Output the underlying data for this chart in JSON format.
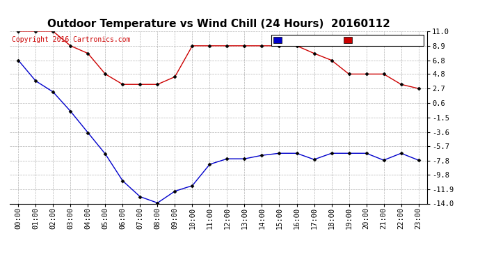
{
  "title": "Outdoor Temperature vs Wind Chill (24 Hours)  20160112",
  "copyright": "Copyright 2016 Cartronics.com",
  "x_labels": [
    "00:00",
    "01:00",
    "02:00",
    "03:00",
    "04:00",
    "05:00",
    "06:00",
    "07:00",
    "08:00",
    "09:00",
    "10:00",
    "11:00",
    "12:00",
    "13:00",
    "14:00",
    "15:00",
    "16:00",
    "17:00",
    "18:00",
    "19:00",
    "20:00",
    "21:00",
    "22:00",
    "23:00"
  ],
  "temperature": [
    11.0,
    11.0,
    11.0,
    8.9,
    7.8,
    4.8,
    3.3,
    3.3,
    3.3,
    4.4,
    8.9,
    8.9,
    8.9,
    8.9,
    8.9,
    8.9,
    8.9,
    7.8,
    6.8,
    4.8,
    4.8,
    4.8,
    3.3,
    2.7
  ],
  "wind_chill": [
    6.8,
    3.8,
    2.2,
    -0.6,
    -3.7,
    -6.8,
    -10.7,
    -13.0,
    -13.9,
    -12.2,
    -11.4,
    -8.3,
    -7.5,
    -7.5,
    -7.0,
    -6.7,
    -6.7,
    -7.6,
    -6.7,
    -6.7,
    -6.7,
    -7.7,
    -6.7,
    -7.7
  ],
  "y_ticks": [
    11.0,
    8.9,
    6.8,
    4.8,
    2.7,
    0.6,
    -1.5,
    -3.6,
    -5.7,
    -7.8,
    -9.8,
    -11.9,
    -14.0
  ],
  "temp_color": "#cc0000",
  "wind_color": "#0000cc",
  "legend_wind_bg": "#0000cc",
  "legend_temp_bg": "#cc0000",
  "background_color": "#ffffff",
  "plot_bg": "#ffffff",
  "grid_color": "#aaaaaa",
  "title_fontsize": 11,
  "tick_fontsize": 7.5,
  "copyright_fontsize": 7
}
